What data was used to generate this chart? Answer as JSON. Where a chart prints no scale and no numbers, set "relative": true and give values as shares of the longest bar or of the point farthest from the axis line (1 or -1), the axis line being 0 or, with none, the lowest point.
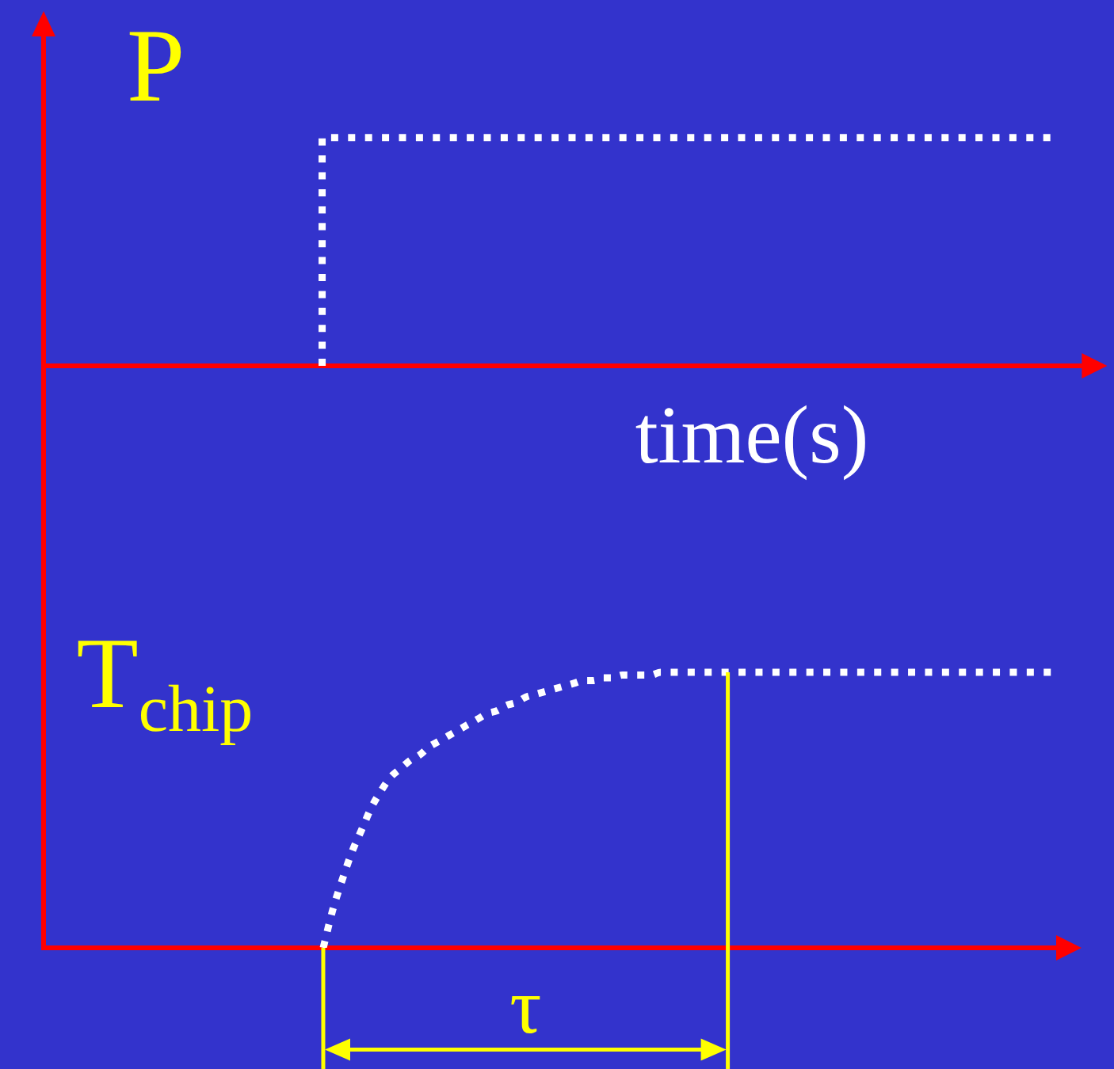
{
  "chart_data": [
    {
      "type": "step",
      "ylabel": "P",
      "xlabel": "time(s)",
      "relative": true,
      "line_style": "dotted",
      "marker": "none",
      "categories": [
        null,
        null,
        null,
        null,
        null,
        null,
        null,
        null,
        null,
        null,
        null,
        null,
        null,
        null,
        null,
        null,
        null,
        null,
        null,
        null,
        null,
        null,
        null,
        null,
        null,
        null,
        null,
        null,
        null,
        null,
        null,
        null,
        null,
        null,
        null,
        null,
        null,
        null,
        null,
        null,
        null,
        null
      ],
      "series": [
        {
          "color": "#ffffff",
          "values": [
            null,
            null,
            null,
            null,
            null,
            null,
            null,
            null,
            null,
            null,
            null,
            0,
            1,
            1,
            1,
            1,
            1,
            1,
            1,
            1,
            1,
            1,
            1,
            1,
            1,
            1,
            1,
            1,
            1,
            1,
            1,
            1,
            1,
            1,
            1,
            1,
            1,
            1,
            1,
            1,
            1,
            null
          ]
        }
      ]
    },
    {
      "type": "line",
      "ylabel": "T$_{chip}$",
      "relative": true,
      "line_style": "dotted",
      "marker": "none",
      "annotations": [
        "τ"
      ],
      "categories": [
        null,
        null,
        null,
        null,
        null,
        null,
        null,
        null,
        null,
        null,
        null,
        null,
        null,
        null,
        null,
        null,
        null,
        null,
        null,
        null,
        null,
        null,
        null,
        null,
        null,
        null,
        null,
        null,
        null,
        null,
        null,
        null,
        null,
        null,
        null,
        null,
        null,
        null,
        null,
        null,
        null,
        null,
        null,
        null,
        null,
        null,
        null,
        null,
        null,
        null,
        null,
        null,
        null,
        null,
        null,
        null,
        null,
        null,
        null,
        null,
        null,
        null,
        null,
        null,
        null,
        null,
        null,
        null,
        null,
        null,
        null,
        null,
        null,
        null,
        null,
        null,
        null,
        null,
        null,
        null,
        null,
        null,
        null,
        null,
        null,
        null,
        null,
        null,
        null,
        null,
        null,
        null,
        null,
        null,
        null,
        null,
        null,
        null,
        null,
        null,
        null,
        null,
        null,
        null,
        null,
        null
      ],
      "series": [
        {
          "color": "#ffffff",
          "values": [
            null,
            null,
            null,
            null,
            null,
            null,
            null,
            null,
            null,
            null,
            null,
            null,
            null,
            null,
            null,
            null,
            null,
            null,
            null,
            null,
            null,
            null,
            null,
            null,
            null,
            null,
            null,
            null,
            null,
            0,
            0.14,
            0.25,
            0.35,
            0.43,
            0.51,
            0.57,
            0.62,
            0.65,
            0.68,
            0.7,
            0.73,
            0.75,
            0.77,
            0.79,
            0.81,
            0.83,
            0.85,
            0.86,
            0.88,
            0.89,
            0.91,
            0.92,
            0.93,
            0.94,
            0.95,
            0.96,
            0.97,
            0.97,
            0.98,
            0.98,
            0.99,
            0.99,
            0.99,
            0.99,
            1,
            1,
            1,
            1,
            1,
            1,
            1,
            1,
            1,
            1,
            1,
            1,
            1,
            1,
            1,
            1,
            1,
            1,
            1,
            1,
            1,
            1,
            1,
            1,
            1,
            1,
            1,
            1,
            1,
            1,
            1,
            1,
            1,
            1,
            1,
            1,
            1,
            1,
            1,
            1,
            1,
            1
          ]
        }
      ]
    }
  ]
}
